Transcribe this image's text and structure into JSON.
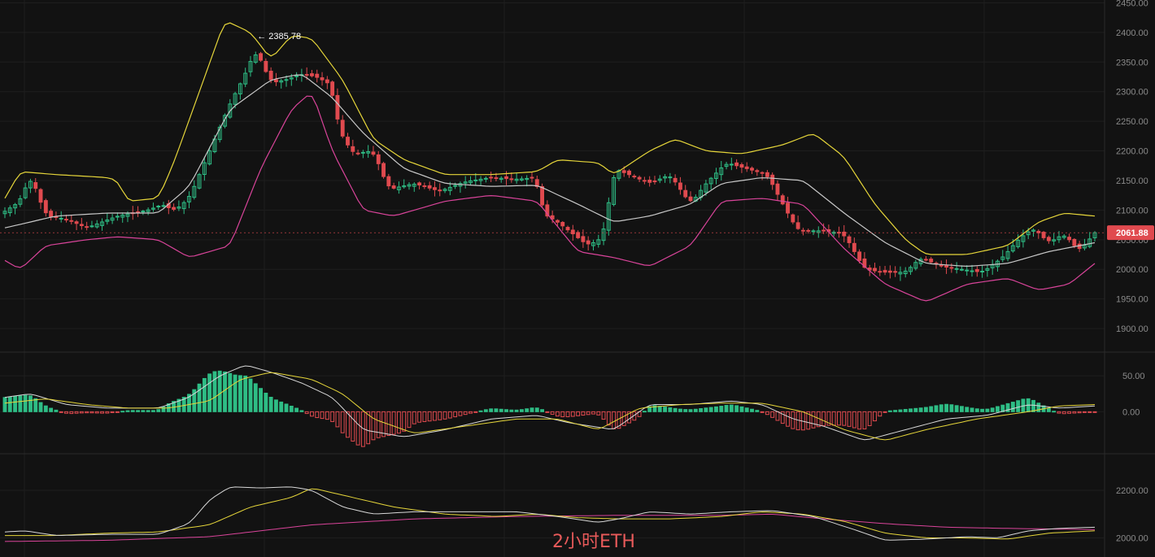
{
  "caption": "2小时ETH",
  "colors": {
    "background": "#121212",
    "grid": "#1e1e1e",
    "up": "#2ebd85",
    "down": "#e04a4f",
    "bb_upper": "#e6d63a",
    "bb_middle": "#c8c8c8",
    "bb_lower": "#d9449a",
    "macd_dif": "#d8d8d8",
    "macd_dea": "#e6d63a",
    "ind_white": "#d8d8d8",
    "ind_yellow": "#e6d63a",
    "ind_pink": "#d9449a",
    "current_price_bg": "#e04a4f"
  },
  "chart_data": [
    {
      "type": "candlestick",
      "name": "price",
      "y_ticks": [
        "2450.00",
        "2400.00",
        "2350.00",
        "2300.00",
        "2250.00",
        "2200.00",
        "2150.00",
        "2100.00",
        "2050.00",
        "2000.00",
        "1950.00",
        "1900.00"
      ],
      "ylim": [
        1885,
        2452
      ],
      "current_price": "2061.88",
      "high_annotation": "2385.78",
      "close_path": [
        [
          0,
          2098
        ],
        [
          3,
          2115
        ],
        [
          5,
          2160
        ],
        [
          8,
          2090
        ],
        [
          12,
          2085
        ],
        [
          16,
          2070
        ],
        [
          22,
          2090
        ],
        [
          28,
          2100
        ],
        [
          31,
          2110
        ],
        [
          33,
          2098
        ],
        [
          36,
          2120
        ],
        [
          40,
          2200
        ],
        [
          44,
          2280
        ],
        [
          47,
          2330
        ],
        [
          49,
          2372
        ],
        [
          52,
          2315
        ],
        [
          55,
          2320
        ],
        [
          58,
          2330
        ],
        [
          61,
          2325
        ],
        [
          64,
          2310
        ],
        [
          65,
          2240
        ],
        [
          68,
          2195
        ],
        [
          72,
          2200
        ],
        [
          75,
          2135
        ],
        [
          80,
          2145
        ],
        [
          85,
          2132
        ],
        [
          90,
          2148
        ],
        [
          95,
          2155
        ],
        [
          100,
          2152
        ],
        [
          104,
          2155
        ],
        [
          105,
          2095
        ],
        [
          108,
          2080
        ],
        [
          111,
          2060
        ],
        [
          114,
          2040
        ],
        [
          117,
          2055
        ],
        [
          119,
          2170
        ],
        [
          122,
          2160
        ],
        [
          126,
          2145
        ],
        [
          130,
          2160
        ],
        [
          134,
          2110
        ],
        [
          137,
          2145
        ],
        [
          141,
          2180
        ],
        [
          145,
          2170
        ],
        [
          149,
          2160
        ],
        [
          152,
          2110
        ],
        [
          155,
          2065
        ],
        [
          160,
          2065
        ],
        [
          164,
          2060
        ],
        [
          168,
          2000
        ],
        [
          172,
          1995
        ],
        [
          176,
          1995
        ],
        [
          179,
          2020
        ],
        [
          183,
          2005
        ],
        [
          187,
          2000
        ],
        [
          191,
          1995
        ],
        [
          195,
          2020
        ],
        [
          198,
          2050
        ],
        [
          201,
          2070
        ],
        [
          204,
          2045
        ],
        [
          207,
          2060
        ],
        [
          210,
          2030
        ],
        [
          213,
          2061.88
        ]
      ],
      "bb_upper": [
        [
          0,
          2120
        ],
        [
          3,
          2165
        ],
        [
          10,
          2160
        ],
        [
          20,
          2155
        ],
        [
          22,
          2150
        ],
        [
          24,
          2115
        ],
        [
          30,
          2120
        ],
        [
          33,
          2180
        ],
        [
          38,
          2300
        ],
        [
          43,
          2420
        ],
        [
          48,
          2400
        ],
        [
          52,
          2355
        ],
        [
          56,
          2395
        ],
        [
          60,
          2390
        ],
        [
          66,
          2320
        ],
        [
          72,
          2220
        ],
        [
          78,
          2185
        ],
        [
          86,
          2160
        ],
        [
          95,
          2160
        ],
        [
          104,
          2165
        ],
        [
          108,
          2185
        ],
        [
          116,
          2180
        ],
        [
          119,
          2160
        ],
        [
          126,
          2200
        ],
        [
          131,
          2220
        ],
        [
          137,
          2200
        ],
        [
          144,
          2195
        ],
        [
          152,
          2210
        ],
        [
          158,
          2230
        ],
        [
          164,
          2190
        ],
        [
          170,
          2110
        ],
        [
          176,
          2050
        ],
        [
          180,
          2025
        ],
        [
          188,
          2025
        ],
        [
          196,
          2040
        ],
        [
          202,
          2080
        ],
        [
          207,
          2095
        ],
        [
          213,
          2090
        ]
      ],
      "bb_middle": [
        [
          0,
          2070
        ],
        [
          10,
          2090
        ],
        [
          20,
          2095
        ],
        [
          30,
          2095
        ],
        [
          36,
          2140
        ],
        [
          44,
          2270
        ],
        [
          52,
          2320
        ],
        [
          58,
          2330
        ],
        [
          64,
          2290
        ],
        [
          70,
          2230
        ],
        [
          78,
          2170
        ],
        [
          86,
          2145
        ],
        [
          95,
          2140
        ],
        [
          104,
          2142
        ],
        [
          112,
          2110
        ],
        [
          119,
          2080
        ],
        [
          126,
          2090
        ],
        [
          134,
          2110
        ],
        [
          140,
          2145
        ],
        [
          148,
          2155
        ],
        [
          156,
          2150
        ],
        [
          164,
          2095
        ],
        [
          172,
          2045
        ],
        [
          180,
          2010
        ],
        [
          188,
          2005
        ],
        [
          196,
          2010
        ],
        [
          204,
          2030
        ],
        [
          213,
          2045
        ]
      ],
      "bb_lower": [
        [
          0,
          2015
        ],
        [
          3,
          2000
        ],
        [
          8,
          2040
        ],
        [
          16,
          2050
        ],
        [
          22,
          2055
        ],
        [
          30,
          2050
        ],
        [
          36,
          2020
        ],
        [
          44,
          2040
        ],
        [
          50,
          2170
        ],
        [
          56,
          2270
        ],
        [
          60,
          2300
        ],
        [
          64,
          2200
        ],
        [
          70,
          2100
        ],
        [
          76,
          2090
        ],
        [
          86,
          2115
        ],
        [
          95,
          2125
        ],
        [
          104,
          2115
        ],
        [
          112,
          2030
        ],
        [
          119,
          2020
        ],
        [
          126,
          2005
        ],
        [
          134,
          2040
        ],
        [
          140,
          2115
        ],
        [
          148,
          2120
        ],
        [
          156,
          2110
        ],
        [
          164,
          2035
        ],
        [
          172,
          1975
        ],
        [
          180,
          1945
        ],
        [
          188,
          1975
        ],
        [
          196,
          1985
        ],
        [
          202,
          1965
        ],
        [
          208,
          1975
        ],
        [
          213,
          2010
        ]
      ],
      "x_count": 214
    },
    {
      "type": "macd",
      "name": "macd",
      "y_ticks": [
        "50.00",
        "0.00"
      ],
      "ylim": [
        -55,
        75
      ],
      "dif": [
        [
          0,
          20
        ],
        [
          5,
          25
        ],
        [
          12,
          10
        ],
        [
          20,
          5
        ],
        [
          30,
          5
        ],
        [
          36,
          20
        ],
        [
          42,
          50
        ],
        [
          47,
          65
        ],
        [
          52,
          55
        ],
        [
          58,
          40
        ],
        [
          64,
          20
        ],
        [
          70,
          -25
        ],
        [
          78,
          -35
        ],
        [
          86,
          -25
        ],
        [
          95,
          -10
        ],
        [
          104,
          -5
        ],
        [
          110,
          -15
        ],
        [
          119,
          -25
        ],
        [
          126,
          10
        ],
        [
          134,
          10
        ],
        [
          142,
          15
        ],
        [
          148,
          10
        ],
        [
          154,
          -10
        ],
        [
          160,
          -20
        ],
        [
          168,
          -40
        ],
        [
          176,
          -25
        ],
        [
          184,
          -10
        ],
        [
          192,
          -5
        ],
        [
          200,
          10
        ],
        [
          206,
          5
        ],
        [
          213,
          8
        ]
      ],
      "dea": [
        [
          0,
          12
        ],
        [
          8,
          18
        ],
        [
          16,
          10
        ],
        [
          24,
          5
        ],
        [
          32,
          5
        ],
        [
          40,
          15
        ],
        [
          46,
          45
        ],
        [
          52,
          55
        ],
        [
          60,
          45
        ],
        [
          66,
          25
        ],
        [
          72,
          -10
        ],
        [
          80,
          -30
        ],
        [
          90,
          -20
        ],
        [
          100,
          -10
        ],
        [
          108,
          -10
        ],
        [
          116,
          -25
        ],
        [
          124,
          5
        ],
        [
          132,
          10
        ],
        [
          140,
          12
        ],
        [
          148,
          12
        ],
        [
          156,
          0
        ],
        [
          164,
          -25
        ],
        [
          172,
          -40
        ],
        [
          180,
          -25
        ],
        [
          190,
          -10
        ],
        [
          200,
          0
        ],
        [
          206,
          8
        ],
        [
          213,
          10
        ]
      ]
    },
    {
      "type": "line",
      "name": "indicator",
      "y_ticks": [
        "2200.00",
        "2000.00"
      ],
      "ylim": [
        1930,
        2330
      ],
      "white": [
        [
          0,
          2025
        ],
        [
          4,
          2030
        ],
        [
          10,
          2010
        ],
        [
          20,
          2015
        ],
        [
          30,
          2015
        ],
        [
          36,
          2060
        ],
        [
          40,
          2160
        ],
        [
          44,
          2215
        ],
        [
          50,
          2210
        ],
        [
          56,
          2215
        ],
        [
          60,
          2200
        ],
        [
          66,
          2130
        ],
        [
          72,
          2100
        ],
        [
          80,
          2110
        ],
        [
          90,
          2110
        ],
        [
          100,
          2110
        ],
        [
          108,
          2090
        ],
        [
          116,
          2065
        ],
        [
          120,
          2080
        ],
        [
          126,
          2110
        ],
        [
          134,
          2100
        ],
        [
          142,
          2110
        ],
        [
          150,
          2115
        ],
        [
          158,
          2090
        ],
        [
          166,
          2035
        ],
        [
          172,
          1990
        ],
        [
          180,
          1995
        ],
        [
          188,
          2005
        ],
        [
          194,
          2000
        ],
        [
          200,
          2030
        ],
        [
          206,
          2040
        ],
        [
          213,
          2045
        ]
      ],
      "yellow": [
        [
          0,
          2010
        ],
        [
          10,
          2010
        ],
        [
          20,
          2020
        ],
        [
          30,
          2025
        ],
        [
          40,
          2055
        ],
        [
          48,
          2130
        ],
        [
          56,
          2170
        ],
        [
          60,
          2210
        ],
        [
          66,
          2180
        ],
        [
          76,
          2130
        ],
        [
          86,
          2100
        ],
        [
          96,
          2090
        ],
        [
          104,
          2100
        ],
        [
          112,
          2085
        ],
        [
          120,
          2080
        ],
        [
          130,
          2080
        ],
        [
          140,
          2090
        ],
        [
          148,
          2110
        ],
        [
          156,
          2100
        ],
        [
          164,
          2070
        ],
        [
          172,
          2020
        ],
        [
          180,
          2000
        ],
        [
          188,
          2000
        ],
        [
          196,
          1995
        ],
        [
          204,
          2020
        ],
        [
          213,
          2030
        ]
      ],
      "pink": [
        [
          0,
          1985
        ],
        [
          20,
          1990
        ],
        [
          40,
          2005
        ],
        [
          60,
          2055
        ],
        [
          80,
          2080
        ],
        [
          100,
          2090
        ],
        [
          120,
          2095
        ],
        [
          140,
          2095
        ],
        [
          150,
          2100
        ],
        [
          160,
          2080
        ],
        [
          172,
          2060
        ],
        [
          184,
          2045
        ],
        [
          196,
          2040
        ],
        [
          213,
          2035
        ]
      ]
    }
  ]
}
